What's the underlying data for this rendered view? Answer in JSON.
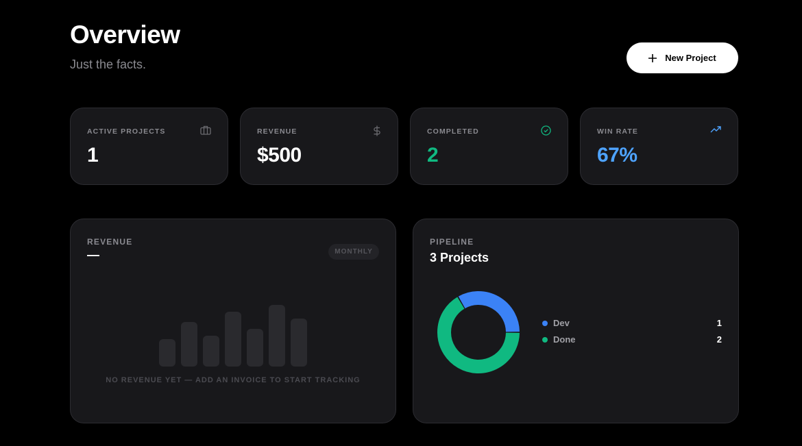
{
  "header": {
    "title": "Overview",
    "subtitle": "Just the facts.",
    "button": "New Project"
  },
  "stats": [
    {
      "label": "ACTIVE PROJECTS",
      "value": "1"
    },
    {
      "label": "REVENUE",
      "value": "$500"
    },
    {
      "label": "COMPLETED",
      "value": "2"
    },
    {
      "label": "WIN RATE",
      "value": "67%"
    }
  ],
  "revenue": {
    "title": "REVENUE",
    "value": "—",
    "period": "MONTHLY",
    "empty_message": "NO REVENUE YET — ADD AN INVOICE TO START TRACKING"
  },
  "pipeline": {
    "title": "PIPELINE",
    "summary": "3 Projects",
    "segments": [
      {
        "name": "Dev",
        "value": 1,
        "color": "#3b82f6"
      },
      {
        "name": "Done",
        "value": 2,
        "color": "#10b981"
      }
    ]
  }
}
